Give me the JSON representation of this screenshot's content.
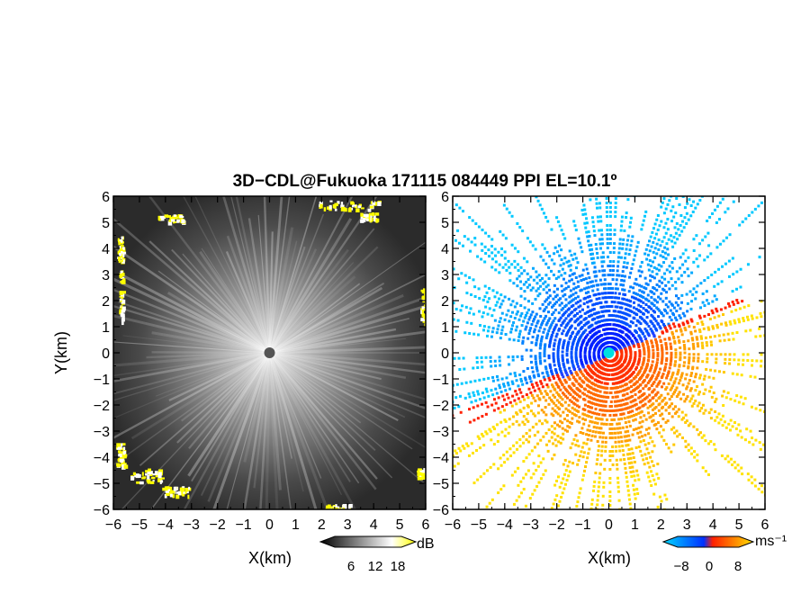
{
  "title": "3D−CDL@Fukuoka 171115 084449 PPI EL=10.1º",
  "chart_data": [
    {
      "type": "heatmap",
      "panel": "reflectivity",
      "xlabel": "X(km)",
      "ylabel": "Y(km)",
      "xlim": [
        -6,
        6
      ],
      "ylim": [
        -6,
        6
      ],
      "xticks": [
        "−6",
        "−5",
        "−4",
        "−3",
        "−2",
        "−1",
        "0",
        "1",
        "2",
        "3",
        "4",
        "5",
        "6"
      ],
      "yticks": [
        "−6",
        "−5",
        "−4",
        "−3",
        "−2",
        "−1",
        "0",
        "1",
        "2",
        "3",
        "4",
        "5",
        "6"
      ],
      "colorbar": {
        "unit": "dB",
        "ticks": [
          "6",
          "12",
          "18"
        ],
        "colors": [
          "#000000",
          "#ffffff",
          "#ffff00"
        ]
      },
      "background_color": "#2a2a2a"
    },
    {
      "type": "heatmap",
      "panel": "doppler_velocity",
      "xlabel": "X(km)",
      "xlim": [
        -6,
        6
      ],
      "ylim": [
        -6,
        6
      ],
      "xticks": [
        "−6",
        "−5",
        "−4",
        "−3",
        "−2",
        "−1",
        "0",
        "1",
        "2",
        "3",
        "4",
        "5",
        "6"
      ],
      "yticks": [
        "−6",
        "−5",
        "−4",
        "−3",
        "−2",
        "−1",
        "0",
        "1",
        "2",
        "3",
        "4",
        "5",
        "6"
      ],
      "colorbar": {
        "unit": "ms⁻¹",
        "ticks": [
          "−8",
          "0",
          "8"
        ],
        "colors": [
          "#00c8ff",
          "#0030ff",
          "#ff2000",
          "#ffe000"
        ]
      }
    }
  ]
}
